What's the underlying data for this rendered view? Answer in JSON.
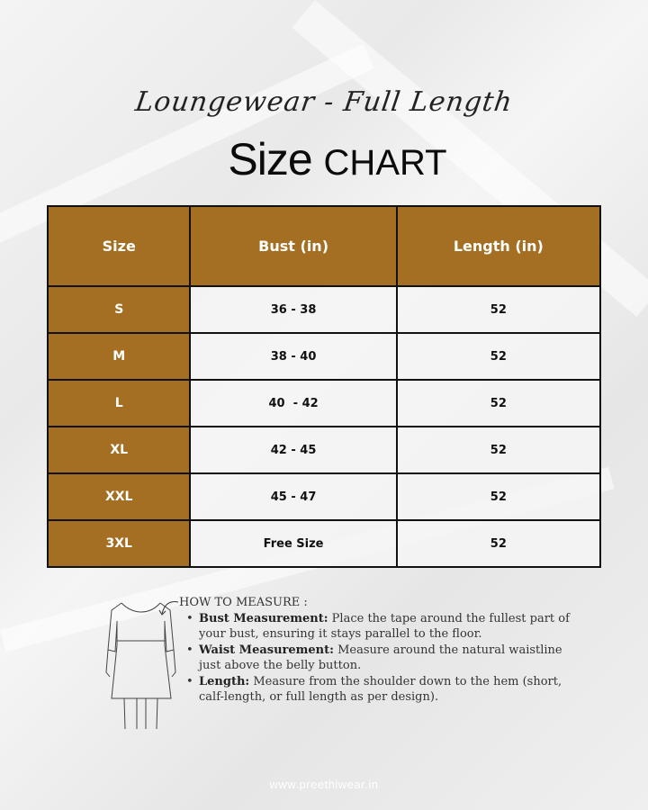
{
  "header": {
    "subtitle": "Loungewear - Full Length",
    "title_part1": "Size",
    "title_part2": "CHART"
  },
  "table": {
    "columns": [
      "Size",
      "Bust (in)",
      "Length (in)"
    ],
    "rows": [
      [
        "S",
        "36 - 38",
        "52"
      ],
      [
        "M",
        "38 - 40",
        "52"
      ],
      [
        "L",
        "40  - 42",
        "52"
      ],
      [
        "XL",
        "42 - 45",
        "52"
      ],
      [
        "XXL",
        "45 - 47",
        "52"
      ],
      [
        "3XL",
        "Free Size",
        "52"
      ]
    ]
  },
  "colors": {
    "header": "#a46f22",
    "text_on_header": "#ffffff"
  },
  "how_to_measure": {
    "heading": "HOW TO MEASURE :",
    "items": [
      {
        "label": "Bust Measurement:",
        "text": " Place the tape around the fullest part of your bust, ensuring it stays parallel to the floor."
      },
      {
        "label": "Waist Measurement:",
        "text": " Measure around the natural waistline just above the belly button."
      },
      {
        "label": "Length:",
        "text": " Measure from the shoulder down to the hem (short, calf-length, or full length as per design)."
      }
    ]
  },
  "footer": {
    "website": "www.preethiwear.in"
  }
}
